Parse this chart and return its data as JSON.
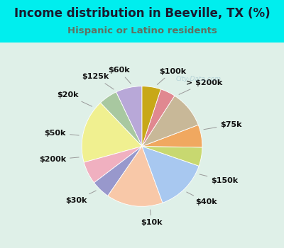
{
  "title": "Income distribution in Beeville, TX (%)",
  "subtitle": "Hispanic or Latino residents",
  "background_color": "#00EEEE",
  "chart_bg_left": "#d8f0e0",
  "chart_bg_right": "#e8f8f0",
  "watermark": "City-Data.com",
  "labels": [
    "$100k",
    "> $200k",
    "$75k",
    "$150k",
    "$40k",
    "$10k",
    "$30k",
    "$200k",
    "$50k",
    "$20k",
    "$125k",
    "$60k"
  ],
  "values": [
    7,
    5,
    17,
    6,
    5,
    15,
    14,
    5,
    6,
    10,
    4,
    5
  ],
  "colors": [
    "#b8a8d8",
    "#a8c8a0",
    "#f0f090",
    "#f0b0c0",
    "#9898cc",
    "#f8c8a8",
    "#a8c8f0",
    "#c8d870",
    "#f0a860",
    "#c8b898",
    "#e08890",
    "#c8a818"
  ],
  "startangle": 90,
  "label_fontsize": 8,
  "title_fontsize": 12,
  "subtitle_fontsize": 9.5
}
